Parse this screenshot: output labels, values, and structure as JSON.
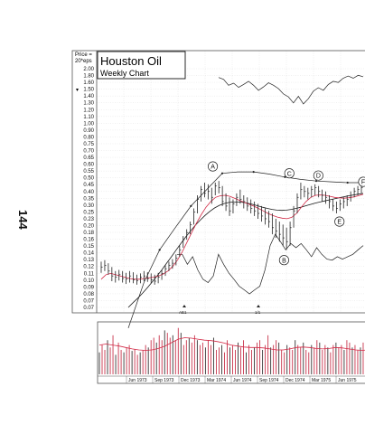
{
  "page": {
    "number": "144"
  },
  "chart_data": {
    "type": "bar",
    "title": "Houston Oil",
    "subtitle": "Weekly Chart",
    "axis_unit_label": [
      "Price =",
      "20*eps"
    ],
    "y_scale": "log",
    "ylim": [
      0.07,
      2.1
    ],
    "grid": true,
    "price_tick_labels": [
      "2.00",
      "1.80",
      "1.60",
      "1.50",
      "1.40",
      "1.30",
      "1.20",
      "1.10",
      "1.00",
      "0.90",
      "0.80",
      "0.75",
      "0.70",
      "0.65",
      "0.60",
      "0.55",
      "0.50",
      "0.45",
      "0.40",
      "0.35",
      "0.30",
      "0.25",
      "0.23",
      "0.20",
      "0.18",
      "0.16",
      "0.15",
      "0.14",
      "0.13",
      "0.12",
      "0.11",
      "0.10",
      "0.09",
      "0.08",
      "0.07",
      "0.07"
    ],
    "x_tick_labels": [
      "Jun 1973",
      "Sep 1973",
      "Dec 1973",
      "Mar 1974",
      "Jun 1974",
      "Sep 1974",
      "Dec 1974",
      "Mar 1975",
      "Jun 1975"
    ],
    "price_bars": [
      {
        "h": 0.135,
        "l": 0.115,
        "c": 0.125
      },
      {
        "h": 0.138,
        "l": 0.118,
        "c": 0.128
      },
      {
        "h": 0.132,
        "l": 0.112,
        "c": 0.118
      },
      {
        "h": 0.125,
        "l": 0.102,
        "c": 0.11
      },
      {
        "h": 0.118,
        "l": 0.1,
        "c": 0.108
      },
      {
        "h": 0.12,
        "l": 0.103,
        "c": 0.112
      },
      {
        "h": 0.118,
        "l": 0.1,
        "c": 0.106
      },
      {
        "h": 0.115,
        "l": 0.098,
        "c": 0.105
      },
      {
        "h": 0.118,
        "l": 0.1,
        "c": 0.11
      },
      {
        "h": 0.116,
        "l": 0.099,
        "c": 0.104
      },
      {
        "h": 0.112,
        "l": 0.097,
        "c": 0.103
      },
      {
        "h": 0.114,
        "l": 0.099,
        "c": 0.108
      },
      {
        "h": 0.118,
        "l": 0.102,
        "c": 0.11
      },
      {
        "h": 0.116,
        "l": 0.101,
        "c": 0.106
      },
      {
        "h": 0.114,
        "l": 0.099,
        "c": 0.104
      },
      {
        "h": 0.112,
        "l": 0.097,
        "c": 0.102
      },
      {
        "h": 0.115,
        "l": 0.099,
        "c": 0.108
      },
      {
        "h": 0.12,
        "l": 0.104,
        "c": 0.114
      },
      {
        "h": 0.128,
        "l": 0.11,
        "c": 0.122
      },
      {
        "h": 0.135,
        "l": 0.118,
        "c": 0.128
      },
      {
        "h": 0.14,
        "l": 0.122,
        "c": 0.132
      },
      {
        "h": 0.15,
        "l": 0.128,
        "c": 0.142
      },
      {
        "h": 0.17,
        "l": 0.145,
        "c": 0.16
      },
      {
        "h": 0.195,
        "l": 0.165,
        "c": 0.185
      },
      {
        "h": 0.215,
        "l": 0.185,
        "c": 0.205
      },
      {
        "h": 0.24,
        "l": 0.2,
        "c": 0.23
      },
      {
        "h": 0.29,
        "l": 0.23,
        "c": 0.275
      },
      {
        "h": 0.35,
        "l": 0.27,
        "c": 0.33
      },
      {
        "h": 0.4,
        "l": 0.32,
        "c": 0.38
      },
      {
        "h": 0.42,
        "l": 0.34,
        "c": 0.36
      },
      {
        "h": 0.41,
        "l": 0.33,
        "c": 0.37
      },
      {
        "h": 0.39,
        "l": 0.31,
        "c": 0.34
      },
      {
        "h": 0.42,
        "l": 0.35,
        "c": 0.4
      },
      {
        "h": 0.43,
        "l": 0.36,
        "c": 0.39
      },
      {
        "h": 0.4,
        "l": 0.3,
        "c": 0.32
      },
      {
        "h": 0.36,
        "l": 0.28,
        "c": 0.3
      },
      {
        "h": 0.34,
        "l": 0.26,
        "c": 0.28
      },
      {
        "h": 0.33,
        "l": 0.27,
        "c": 0.31
      },
      {
        "h": 0.36,
        "l": 0.3,
        "c": 0.34
      },
      {
        "h": 0.38,
        "l": 0.31,
        "c": 0.33
      },
      {
        "h": 0.35,
        "l": 0.29,
        "c": 0.32
      },
      {
        "h": 0.34,
        "l": 0.28,
        "c": 0.3
      },
      {
        "h": 0.33,
        "l": 0.27,
        "c": 0.29
      },
      {
        "h": 0.32,
        "l": 0.26,
        "c": 0.28
      },
      {
        "h": 0.31,
        "l": 0.25,
        "c": 0.27
      },
      {
        "h": 0.3,
        "l": 0.24,
        "c": 0.26
      },
      {
        "h": 0.29,
        "l": 0.23,
        "c": 0.25
      },
      {
        "h": 0.28,
        "l": 0.22,
        "c": 0.24
      },
      {
        "h": 0.27,
        "l": 0.2,
        "c": 0.22
      },
      {
        "h": 0.25,
        "l": 0.19,
        "c": 0.21
      },
      {
        "h": 0.24,
        "l": 0.18,
        "c": 0.2
      },
      {
        "h": 0.23,
        "l": 0.17,
        "c": 0.19
      },
      {
        "h": 0.22,
        "l": 0.16,
        "c": 0.18
      },
      {
        "h": 0.24,
        "l": 0.17,
        "c": 0.22
      },
      {
        "h": 0.3,
        "l": 0.22,
        "c": 0.28
      },
      {
        "h": 0.36,
        "l": 0.27,
        "c": 0.34
      },
      {
        "h": 0.42,
        "l": 0.33,
        "c": 0.38
      },
      {
        "h": 0.4,
        "l": 0.34,
        "c": 0.37
      },
      {
        "h": 0.39,
        "l": 0.33,
        "c": 0.36
      },
      {
        "h": 0.4,
        "l": 0.34,
        "c": 0.38
      },
      {
        "h": 0.41,
        "l": 0.35,
        "c": 0.39
      },
      {
        "h": 0.4,
        "l": 0.34,
        "c": 0.37
      },
      {
        "h": 0.38,
        "l": 0.32,
        "c": 0.35
      },
      {
        "h": 0.37,
        "l": 0.31,
        "c": 0.34
      },
      {
        "h": 0.35,
        "l": 0.29,
        "c": 0.32
      },
      {
        "h": 0.33,
        "l": 0.28,
        "c": 0.3
      },
      {
        "h": 0.32,
        "l": 0.27,
        "c": 0.29
      },
      {
        "h": 0.33,
        "l": 0.28,
        "c": 0.31
      },
      {
        "h": 0.34,
        "l": 0.29,
        "c": 0.32
      },
      {
        "h": 0.35,
        "l": 0.3,
        "c": 0.33
      },
      {
        "h": 0.37,
        "l": 0.32,
        "c": 0.35
      },
      {
        "h": 0.39,
        "l": 0.34,
        "c": 0.37
      },
      {
        "h": 0.4,
        "l": 0.35,
        "c": 0.38
      },
      {
        "h": 0.41,
        "l": 0.36,
        "c": 0.39
      }
    ],
    "moving_average_red": [
      0.105,
      0.112,
      0.114,
      0.112,
      0.11,
      0.108,
      0.106,
      0.105,
      0.105,
      0.106,
      0.107,
      0.108,
      0.11,
      0.113,
      0.118,
      0.126,
      0.138,
      0.155,
      0.178,
      0.205,
      0.235,
      0.265,
      0.295,
      0.32,
      0.34,
      0.348,
      0.35,
      0.345,
      0.336,
      0.326,
      0.317,
      0.308,
      0.3,
      0.29,
      0.28,
      0.27,
      0.262,
      0.256,
      0.252,
      0.25,
      0.255,
      0.27,
      0.295,
      0.32,
      0.34,
      0.35,
      0.352,
      0.35,
      0.345,
      0.34,
      0.337,
      0.336,
      0.338,
      0.342,
      0.348,
      0.355
    ],
    "moving_average_black": [
      0.07,
      0.075,
      0.08,
      0.086,
      0.093,
      0.101,
      0.11,
      0.12,
      0.132,
      0.145,
      0.16,
      0.176,
      0.193,
      0.21,
      0.228,
      0.245,
      0.262,
      0.278,
      0.292,
      0.303,
      0.311,
      0.316,
      0.318,
      0.318,
      0.316,
      0.312,
      0.307,
      0.301,
      0.295,
      0.29,
      0.286,
      0.283,
      0.282,
      0.283,
      0.286,
      0.29,
      0.295,
      0.301,
      0.307,
      0.313,
      0.318,
      0.323,
      0.328,
      0.333,
      0.338,
      0.343,
      0.348,
      0.352,
      0.356,
      0.36
    ],
    "trend_line_points": [
      0.052,
      0.1,
      0.16,
      0.22,
      0.3,
      0.38,
      0.48,
      0.49,
      0.49,
      0.475,
      0.455,
      0.44,
      0.43,
      0.425,
      0.42,
      0.42
    ],
    "relative_strength_line": [
      0.15,
      0.15,
      0.13,
      0.145,
      0.12,
      0.105,
      0.1,
      0.11,
      0.15,
      0.13,
      0.115,
      0.105,
      0.095,
      0.09,
      0.085,
      0.09,
      0.095,
      0.12,
      0.17,
      0.2,
      0.18,
      0.16,
      0.175,
      0.165,
      0.175,
      0.16,
      0.145,
      0.165,
      0.15,
      0.14,
      0.138,
      0.145,
      0.14,
      0.145,
      0.15,
      0.16,
      0.17
    ],
    "upper_index_line": [
      1.9,
      1.85,
      1.7,
      1.75,
      1.65,
      1.72,
      1.8,
      1.7,
      1.58,
      1.66,
      1.76,
      1.7,
      1.62,
      1.5,
      1.44,
      1.32,
      1.45,
      1.3,
      1.4,
      1.56,
      1.64,
      1.58,
      1.72,
      1.8,
      1.77,
      1.88,
      1.94,
      1.88,
      1.96,
      1.92
    ],
    "annotations": [
      {
        "label": "A",
        "x": 0.43,
        "price": 0.53
      },
      {
        "label": "B",
        "x": 0.7,
        "price": 0.138
      },
      {
        "label": "C",
        "x": 0.72,
        "price": 0.48
      },
      {
        "label": "D",
        "x": 0.83,
        "price": 0.465
      },
      {
        "label": "E",
        "x": 0.91,
        "price": 0.24
      },
      {
        "label": "F",
        "x": 1.0,
        "price": 0.425
      }
    ],
    "volume_bars": [
      0.45,
      0.6,
      0.5,
      0.7,
      0.55,
      0.8,
      0.4,
      0.65,
      0.5,
      0.45,
      0.55,
      0.6,
      0.48,
      0.52,
      0.4,
      0.45,
      0.5,
      0.6,
      0.55,
      0.7,
      0.75,
      0.65,
      0.8,
      0.7,
      0.9,
      0.85,
      0.75,
      0.8,
      0.7,
      0.95,
      0.85,
      0.6,
      0.7,
      0.75,
      0.65,
      0.8,
      0.7,
      0.6,
      0.65,
      0.55,
      0.7,
      0.6,
      0.75,
      0.5,
      0.55,
      0.6,
      0.45,
      0.7,
      0.55,
      0.6,
      0.5,
      0.65,
      0.55,
      0.7,
      0.45,
      0.6,
      0.5,
      0.55,
      0.65,
      0.7,
      0.5,
      0.6,
      0.8,
      0.55,
      0.6,
      0.7,
      0.65,
      0.5,
      0.45,
      0.6,
      0.55,
      0.5,
      0.7,
      0.6,
      0.55,
      0.65,
      0.5,
      0.45,
      0.6,
      0.55,
      0.7,
      0.65,
      0.5,
      0.6,
      0.55,
      0.45,
      0.6,
      0.65,
      0.55,
      0.6,
      0.5,
      0.7,
      0.65,
      0.55,
      0.6,
      0.5,
      0.55,
      0.65,
      0.6,
      0.55
    ],
    "volume_average": [
      0.6,
      0.62,
      0.6,
      0.58,
      0.55,
      0.52,
      0.5,
      0.49,
      0.5,
      0.53,
      0.58,
      0.65,
      0.72,
      0.75,
      0.74,
      0.72,
      0.7,
      0.69,
      0.67,
      0.64,
      0.6,
      0.58,
      0.56,
      0.55,
      0.55,
      0.54,
      0.52,
      0.5,
      0.5,
      0.52,
      0.55,
      0.56,
      0.55,
      0.53,
      0.52,
      0.53,
      0.55,
      0.54,
      0.52,
      0.5,
      0.49,
      0.5
    ],
    "colors": {
      "price_bars": "#222222",
      "red_line": "#d22a46",
      "black_line": "#1a1a1a",
      "grid": "#cfcfcf",
      "volume_red": "#c8344c",
      "volume_black": "#333333",
      "frame": "#555555"
    }
  }
}
